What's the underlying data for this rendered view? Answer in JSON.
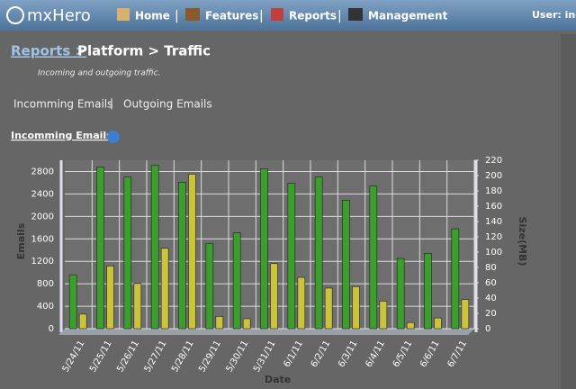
{
  "nav": {
    "logo": "mxHero",
    "items": [
      "Home",
      "Features",
      "Reports",
      "Management"
    ],
    "user": "User: inov"
  },
  "header": {
    "crumb_link": "Reports >",
    "crumb": "Platform > Traffic",
    "subtitle": "Incoming and outgoing traffic."
  },
  "tabs": [
    "Incomming Emails",
    "|",
    "Outgoing Emails"
  ],
  "section": "Incomming Emails",
  "chart_data": {
    "type": "bar",
    "x_label": "Date",
    "y_label": "Emails",
    "y2_label": "Size(MB)",
    "categories": [
      "5/24/11",
      "5/25/11",
      "5/26/11",
      "5/27/11",
      "5/28/11",
      "5/29/11",
      "5/30/11",
      "5/31/11",
      "6/1/11",
      "6/2/11",
      "6/3/11",
      "6/4/11",
      "6/5/11",
      "6/6/11",
      "6/7/11"
    ],
    "series": [
      {
        "color": "#3c9e2c",
        "values": [
          960,
          2880,
          2700,
          2910,
          2610,
          1520,
          1710,
          2850,
          2590,
          2700,
          2290,
          2540,
          1250,
          1340,
          1780
        ]
      },
      {
        "color": "#c9c43c",
        "axis": "y2",
        "values": [
          19,
          82,
          59,
          105,
          202,
          16,
          13,
          85,
          67,
          53,
          55,
          36,
          8,
          14,
          38
        ]
      }
    ],
    "ylim": [
      0,
      3000
    ],
    "yticks": [
      0,
      400,
      800,
      1200,
      1600,
      2000,
      2400,
      2800
    ],
    "y2lim": [
      0,
      220
    ],
    "y2ticks": [
      0,
      20,
      40,
      60,
      80,
      100,
      120,
      140,
      160,
      180,
      200,
      220
    ],
    "grid": true
  }
}
